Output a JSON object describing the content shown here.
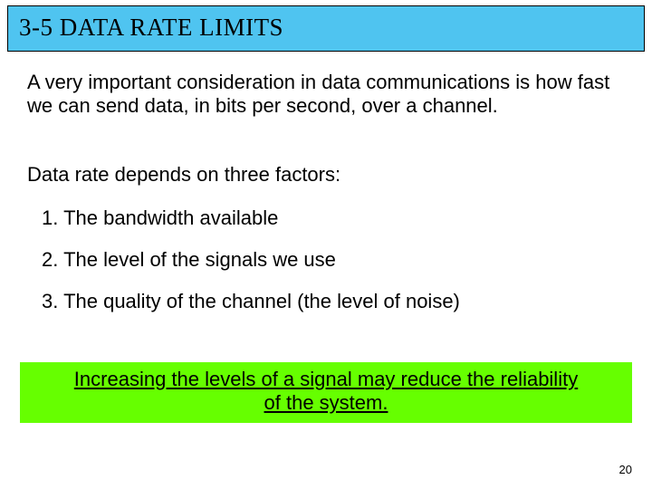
{
  "colors": {
    "title_bg": "#4fc4f0",
    "callout_bg": "#66ff00",
    "page_bg": "#ffffff",
    "text": "#000000",
    "border": "#000000"
  },
  "fonts": {
    "title_family": "Times New Roman",
    "title_size_pt": 27,
    "body_family": "Comic Sans MS",
    "body_size_pt": 22,
    "callout_family": "Arial",
    "callout_size_pt": 22,
    "pagenum_size_pt": 13
  },
  "title": "3-5   DATA RATE LIMITS",
  "intro": "A very important consideration in data communications is how fast we can send data, in bits per second, over a channel.",
  "depends": "Data rate depends on three factors:",
  "factors": [
    "1. The bandwidth available",
    "2. The level of the signals we use",
    "3. The quality of the channel (the level of noise)"
  ],
  "callout_line1": "Increasing the levels of a signal may reduce the reliability",
  "callout_line2": "of the system.",
  "page_number": "20"
}
